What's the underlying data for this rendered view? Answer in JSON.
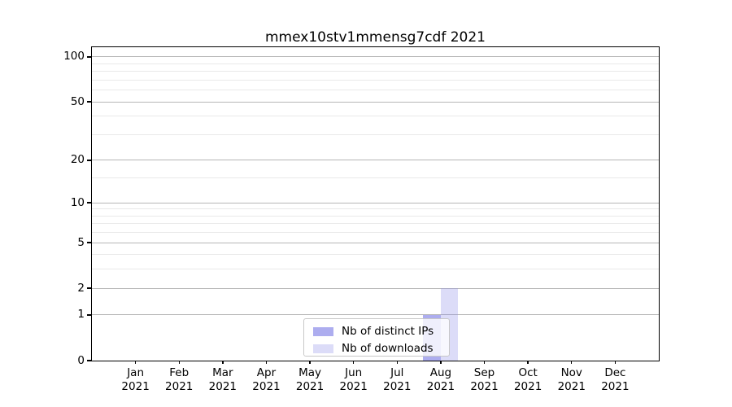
{
  "title": "mmex10stv1mmensg7cdf 2021",
  "chart_data": {
    "type": "bar",
    "title": "mmex10stv1mmensg7cdf 2021",
    "categories": [
      "Jan 2021",
      "Feb 2021",
      "Mar 2021",
      "Apr 2021",
      "May 2021",
      "Jun 2021",
      "Jul 2021",
      "Aug 2021",
      "Sep 2021",
      "Oct 2021",
      "Nov 2021",
      "Dec 2021"
    ],
    "series": [
      {
        "name": "Nb of distinct IPs",
        "color": "rgba(138,138,232,0.7)",
        "values": [
          0,
          0,
          0,
          0,
          0,
          0,
          0,
          1,
          0,
          0,
          0,
          0
        ]
      },
      {
        "name": "Nb of downloads",
        "color": "rgba(138,138,232,0.3)",
        "values": [
          0,
          0,
          0,
          0,
          0,
          0,
          0,
          2,
          0,
          0,
          0,
          0
        ]
      }
    ],
    "xlabel": "",
    "ylabel": "",
    "yscale": "log1p",
    "ylim": [
      0,
      116
    ],
    "yticks": [
      0,
      1,
      2,
      5,
      10,
      20,
      50,
      100
    ],
    "minor_yticks": [
      3,
      4,
      6,
      7,
      8,
      9,
      15,
      30,
      40,
      60,
      70,
      80,
      90
    ],
    "grid": true,
    "legend_position": "lower center"
  },
  "colors": {
    "bar_base": "#8a8ae8",
    "major_grid": "#b6b6b6",
    "minor_grid": "#e9e9e9",
    "spine": "#000000",
    "legend_border": "#c8c8c8",
    "background": "#ffffff"
  }
}
